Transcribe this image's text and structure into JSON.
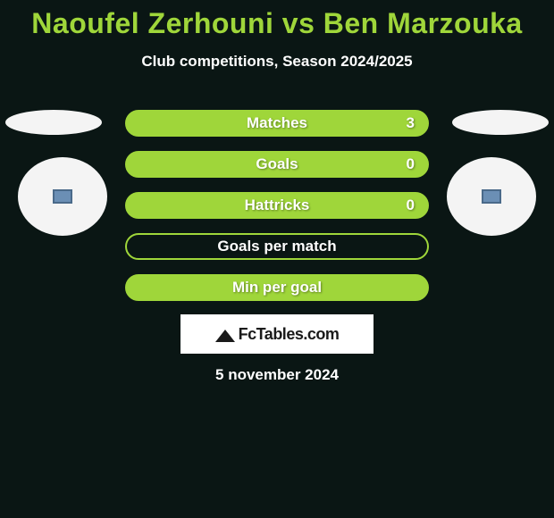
{
  "header": {
    "title": "Naoufel Zerhouni vs Ben Marzouka",
    "subtitle": "Club competitions, Season 2024/2025"
  },
  "stats": {
    "rows": [
      {
        "label": "Matches",
        "value": "3",
        "filled": true,
        "show_value": true
      },
      {
        "label": "Goals",
        "value": "0",
        "filled": true,
        "show_value": true
      },
      {
        "label": "Hattricks",
        "value": "0",
        "filled": true,
        "show_value": true
      },
      {
        "label": "Goals per match",
        "value": "",
        "filled": false,
        "show_value": false
      },
      {
        "label": "Min per goal",
        "value": "",
        "filled": true,
        "show_value": false
      }
    ]
  },
  "brand": {
    "name": "FcTables.com"
  },
  "footer": {
    "date": "5 november 2024"
  },
  "colors": {
    "accent": "#9fd63a",
    "background": "#0a1614",
    "text": "#ffffff",
    "brand_bg": "#ffffff",
    "brand_text": "#1a1a1a"
  }
}
